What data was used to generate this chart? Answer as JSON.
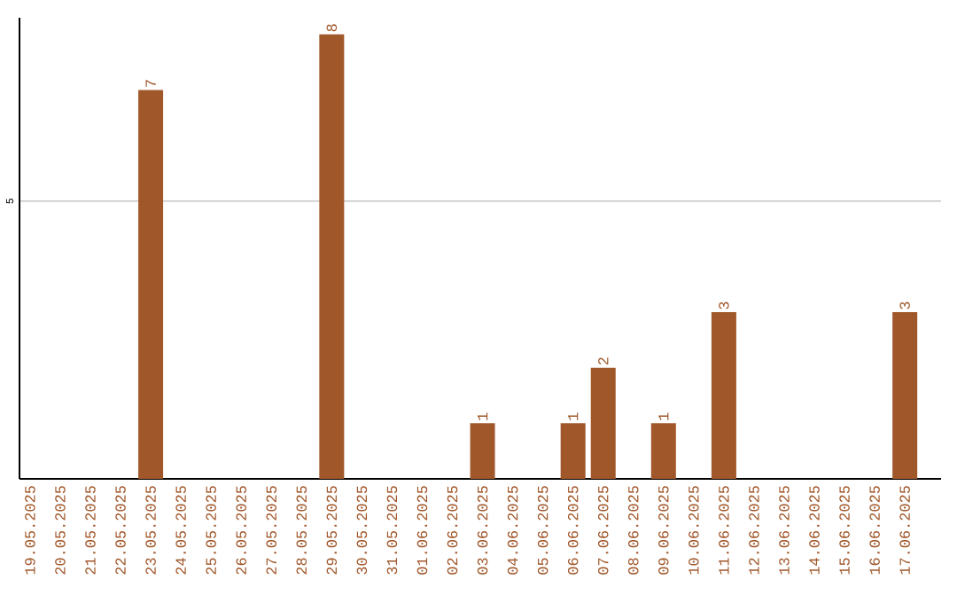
{
  "chart_data": {
    "type": "bar",
    "categories": [
      "19.05.2025",
      "20.05.2025",
      "21.05.2025",
      "22.05.2025",
      "23.05.2025",
      "24.05.2025",
      "25.05.2025",
      "26.05.2025",
      "27.05.2025",
      "28.05.2025",
      "29.05.2025",
      "30.05.2025",
      "31.05.2025",
      "01.06.2025",
      "02.06.2025",
      "03.06.2025",
      "04.06.2025",
      "05.06.2025",
      "06.06.2025",
      "07.06.2025",
      "08.06.2025",
      "09.06.2025",
      "10.06.2025",
      "11.06.2025",
      "12.06.2025",
      "13.06.2025",
      "14.06.2025",
      "15.06.2025",
      "16.06.2025",
      "17.06.2025"
    ],
    "values": [
      0,
      0,
      0,
      0,
      7,
      0,
      0,
      0,
      0,
      0,
      8,
      0,
      0,
      0,
      0,
      1,
      0,
      0,
      1,
      2,
      0,
      1,
      0,
      3,
      0,
      0,
      0,
      0,
      0,
      3
    ],
    "value_labels": [
      null,
      null,
      null,
      null,
      "7",
      null,
      null,
      null,
      null,
      null,
      "8",
      null,
      null,
      null,
      null,
      "1",
      null,
      null,
      "1",
      "2",
      null,
      "1",
      null,
      "3",
      null,
      null,
      null,
      null,
      null,
      "3"
    ],
    "color": "#a0572a",
    "ylim": [
      0,
      8.3
    ],
    "yticks": [
      5
    ],
    "grid": "y"
  }
}
